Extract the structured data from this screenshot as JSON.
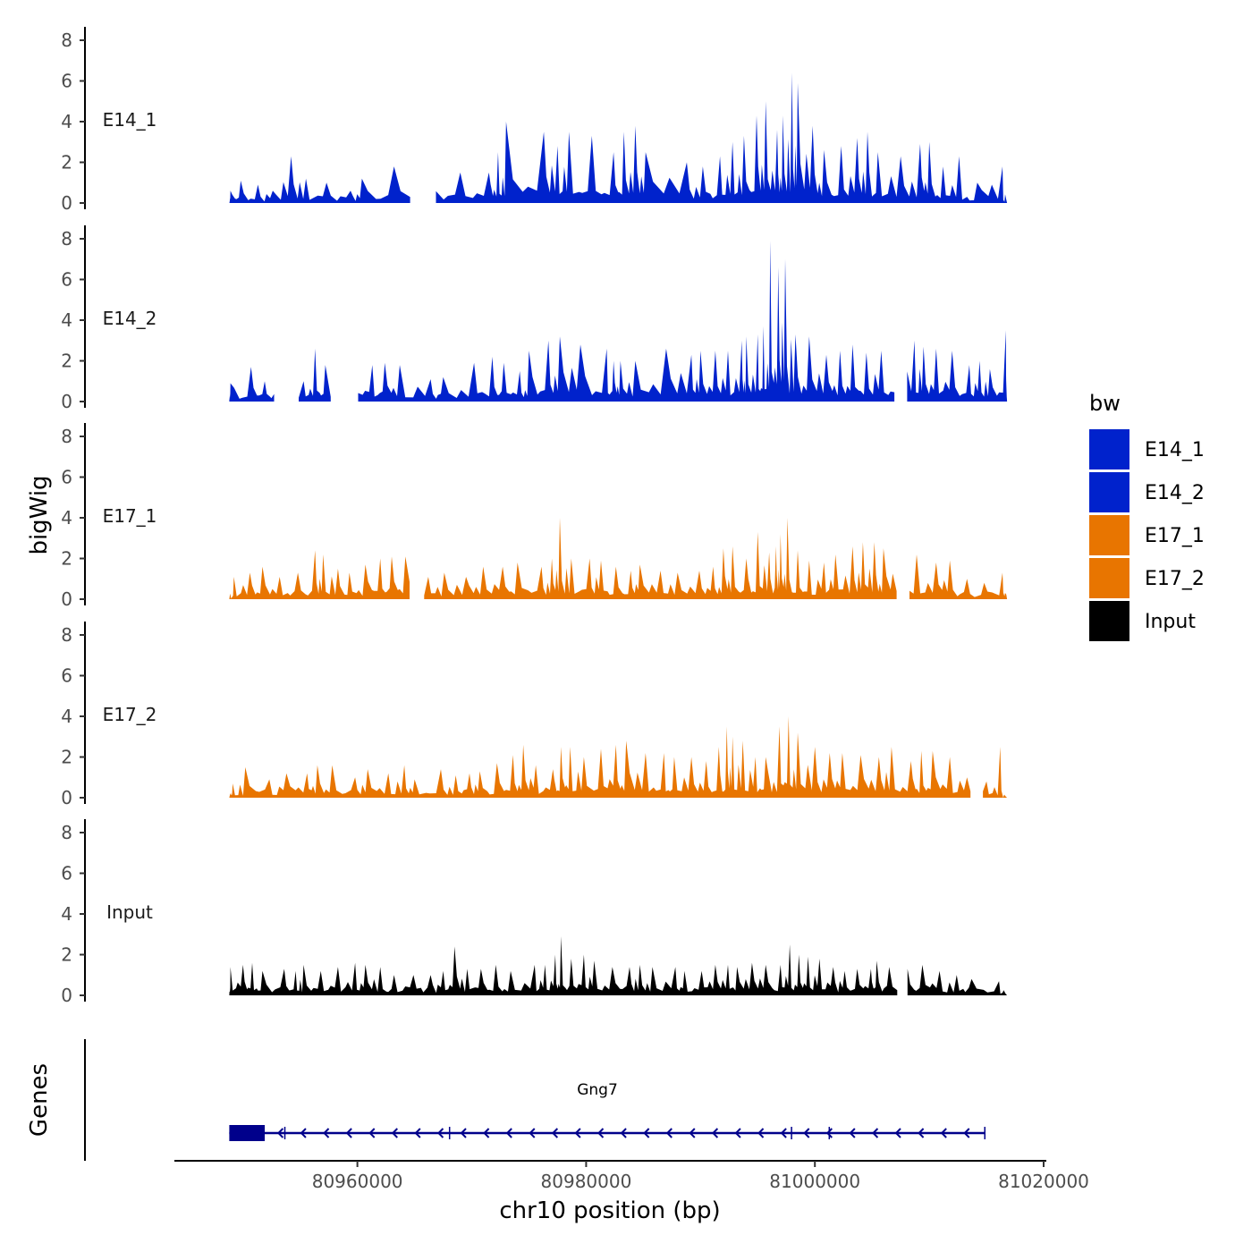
{
  "chart_data": {
    "type": "area",
    "title": "",
    "xlabel": "chr10 position (bp)",
    "ylabel": "bigWig",
    "genes_label": "Genes",
    "xlim": [
      80944000,
      81020000
    ],
    "ylim": [
      0,
      8
    ],
    "data_range": [
      80948800,
      81016800
    ],
    "x_ticks": [
      80960000,
      80980000,
      81000000,
      81020000
    ],
    "x_tick_labels": [
      "80960000",
      "80980000",
      "81000000",
      "81020000"
    ],
    "y_ticks": [
      0,
      2,
      4,
      6,
      8
    ],
    "y_tick_labels": [
      "0",
      "2",
      "4",
      "6",
      "8"
    ],
    "legend": {
      "title": "bw",
      "position": "right",
      "entries": [
        {
          "label": "E14_1",
          "color": "#0022CC"
        },
        {
          "label": "E14_2",
          "color": "#0022CC"
        },
        {
          "label": "E17_1",
          "color": "#E87500"
        },
        {
          "label": "E17_2",
          "color": "#E87500"
        },
        {
          "label": "Input",
          "color": "#000000"
        }
      ]
    },
    "series": [
      {
        "name": "E14_1",
        "color": "#0022CC",
        "peaks": [
          [
            80948900,
            0.6
          ],
          [
            80949800,
            1.1
          ],
          [
            80951300,
            0.9
          ],
          [
            80952600,
            0.6
          ],
          [
            80954200,
            2.3
          ],
          [
            80955500,
            1.2
          ],
          [
            80957300,
            1.0
          ],
          [
            80959400,
            0.6
          ],
          [
            80960400,
            1.2
          ],
          [
            80963200,
            1.8
          ],
          [
            80966400,
            1.0
          ],
          [
            80969000,
            1.5
          ],
          [
            80971500,
            1.5
          ],
          [
            80972300,
            2.5
          ],
          [
            80973000,
            4.0
          ],
          [
            80976300,
            3.5
          ],
          [
            80977500,
            2.8
          ],
          [
            80978500,
            3.5
          ],
          [
            80980500,
            3.3
          ],
          [
            80982400,
            2.5
          ],
          [
            80983300,
            3.5
          ],
          [
            80984300,
            3.8
          ],
          [
            80985200,
            2.5
          ],
          [
            80988800,
            2.0
          ],
          [
            80990200,
            1.8
          ],
          [
            80991700,
            2.3
          ],
          [
            80992800,
            3.0
          ],
          [
            80993800,
            3.3
          ],
          [
            80994900,
            4.3
          ],
          [
            80995700,
            5.0
          ],
          [
            80996700,
            3.6
          ],
          [
            80997200,
            4.3
          ],
          [
            80998000,
            6.4
          ],
          [
            80998500,
            5.9
          ],
          [
            80999800,
            3.8
          ],
          [
            81000800,
            2.6
          ],
          [
            81002300,
            2.8
          ],
          [
            81003700,
            3.2
          ],
          [
            81004600,
            3.5
          ],
          [
            81005500,
            2.5
          ],
          [
            81007500,
            2.3
          ],
          [
            81009200,
            2.9
          ],
          [
            81010000,
            3.0
          ],
          [
            81011200,
            1.8
          ],
          [
            81012600,
            2.3
          ],
          [
            81014200,
            1.0
          ],
          [
            81016400,
            1.8
          ]
        ],
        "gaps": [
          [
            80963800,
            80964500
          ],
          [
            80964900,
            80966400
          ]
        ]
      },
      {
        "name": "E14_2",
        "color": "#0022CC",
        "peaks": [
          [
            80948900,
            0.9
          ],
          [
            80950700,
            1.7
          ],
          [
            80951900,
            1.0
          ],
          [
            80952900,
            0.6
          ],
          [
            80955300,
            1.0
          ],
          [
            80956300,
            2.6
          ],
          [
            80957200,
            1.8
          ],
          [
            80959800,
            1.8
          ],
          [
            80961300,
            1.8
          ],
          [
            80962400,
            1.9
          ],
          [
            80963700,
            1.8
          ],
          [
            80966400,
            1.1
          ],
          [
            80967500,
            1.2
          ],
          [
            80970200,
            1.9
          ],
          [
            80971800,
            2.2
          ],
          [
            80972800,
            1.9
          ],
          [
            80974200,
            1.5
          ],
          [
            80975000,
            2.5
          ],
          [
            80976700,
            3.0
          ],
          [
            80977700,
            3.2
          ],
          [
            80979500,
            2.8
          ],
          [
            80981800,
            2.6
          ],
          [
            80982400,
            2.0
          ],
          [
            80983000,
            2.0
          ],
          [
            80984300,
            2.0
          ],
          [
            80987000,
            2.6
          ],
          [
            80989200,
            2.3
          ],
          [
            80990000,
            2.5
          ],
          [
            80991300,
            2.5
          ],
          [
            80992400,
            2.5
          ],
          [
            80993600,
            3.0
          ],
          [
            80994000,
            3.2
          ],
          [
            80995000,
            3.3
          ],
          [
            80995500,
            3.7
          ],
          [
            80996100,
            7.9
          ],
          [
            80996800,
            6.6
          ],
          [
            80997400,
            7.0
          ],
          [
            80998300,
            3.3
          ],
          [
            80999500,
            3.2
          ],
          [
            81001000,
            2.3
          ],
          [
            81002200,
            2.5
          ],
          [
            81003300,
            2.8
          ],
          [
            81004500,
            2.4
          ],
          [
            81005800,
            2.5
          ],
          [
            81007200,
            2.2
          ],
          [
            81008700,
            3.0
          ],
          [
            81009500,
            2.7
          ],
          [
            81010600,
            2.6
          ],
          [
            81012000,
            2.5
          ],
          [
            81013500,
            1.8
          ],
          [
            81014400,
            2.0
          ],
          [
            81015300,
            1.6
          ],
          [
            81016700,
            3.5
          ]
        ],
        "gaps": [
          [
            80952800,
            80953800
          ],
          [
            80954100,
            80954700
          ],
          [
            80958200,
            80959900
          ],
          [
            81007200,
            81008000
          ]
        ]
      },
      {
        "name": "E17_1",
        "color": "#E87500",
        "peaks": [
          [
            80949200,
            1.1
          ],
          [
            80950600,
            1.3
          ],
          [
            80951700,
            1.6
          ],
          [
            80953200,
            1.1
          ],
          [
            80954800,
            1.3
          ],
          [
            80956300,
            2.4
          ],
          [
            80957000,
            2.2
          ],
          [
            80958300,
            1.5
          ],
          [
            80959300,
            1.3
          ],
          [
            80960700,
            1.7
          ],
          [
            80962000,
            2.0
          ],
          [
            80963000,
            2.1
          ],
          [
            80964200,
            2.1
          ],
          [
            80966200,
            1.1
          ],
          [
            80967600,
            1.3
          ],
          [
            80969500,
            1.1
          ],
          [
            80971000,
            1.6
          ],
          [
            80972700,
            1.6
          ],
          [
            80974000,
            1.8
          ],
          [
            80976100,
            1.6
          ],
          [
            80977000,
            2.0
          ],
          [
            80977700,
            4.0
          ],
          [
            80978700,
            2.0
          ],
          [
            80980300,
            2.0
          ],
          [
            80981300,
            1.9
          ],
          [
            80982600,
            1.6
          ],
          [
            80983900,
            1.4
          ],
          [
            80984700,
            1.7
          ],
          [
            80986500,
            1.4
          ],
          [
            80988000,
            1.3
          ],
          [
            80989900,
            1.4
          ],
          [
            80991100,
            1.6
          ],
          [
            80992000,
            2.5
          ],
          [
            80992800,
            2.6
          ],
          [
            80994000,
            2.0
          ],
          [
            80995000,
            3.3
          ],
          [
            80996000,
            2.3
          ],
          [
            80996600,
            2.6
          ],
          [
            80997000,
            3.2
          ],
          [
            80997600,
            4.0
          ],
          [
            80998500,
            2.4
          ],
          [
            80999500,
            1.9
          ],
          [
            81000800,
            1.8
          ],
          [
            81001800,
            2.2
          ],
          [
            81003300,
            2.6
          ],
          [
            81004200,
            2.8
          ],
          [
            81005200,
            2.8
          ],
          [
            81006000,
            2.5
          ],
          [
            81007400,
            2.1
          ],
          [
            81008900,
            2.2
          ],
          [
            81010600,
            1.8
          ],
          [
            81011800,
            1.9
          ],
          [
            81013300,
            1.0
          ],
          [
            81014800,
            0.8
          ],
          [
            81016400,
            1.3
          ]
        ],
        "gaps": [
          [
            80964900,
            80965500
          ],
          [
            81007300,
            81008200
          ]
        ]
      },
      {
        "name": "E17_2",
        "color": "#E87500",
        "peaks": [
          [
            80949100,
            0.7
          ],
          [
            80950200,
            1.5
          ],
          [
            80952300,
            0.9
          ],
          [
            80953800,
            1.2
          ],
          [
            80955600,
            1.2
          ],
          [
            80956500,
            1.6
          ],
          [
            80957800,
            1.6
          ],
          [
            80959800,
            1.0
          ],
          [
            80960900,
            1.4
          ],
          [
            80962700,
            1.2
          ],
          [
            80964100,
            1.6
          ],
          [
            80965000,
            0.9
          ],
          [
            80967300,
            1.4
          ],
          [
            80968600,
            1.1
          ],
          [
            80969800,
            1.2
          ],
          [
            80970700,
            1.3
          ],
          [
            80972200,
            1.7
          ],
          [
            80973600,
            2.1
          ],
          [
            80974500,
            2.6
          ],
          [
            80975600,
            1.6
          ],
          [
            80977100,
            1.4
          ],
          [
            80977800,
            2.5
          ],
          [
            80978600,
            2.5
          ],
          [
            80979800,
            2.0
          ],
          [
            80981300,
            2.4
          ],
          [
            80982600,
            2.6
          ],
          [
            80983500,
            2.8
          ],
          [
            80985200,
            2.2
          ],
          [
            80986800,
            2.2
          ],
          [
            80987700,
            2.0
          ],
          [
            80989200,
            2.0
          ],
          [
            80990500,
            1.8
          ],
          [
            80991600,
            2.5
          ],
          [
            80992300,
            3.5
          ],
          [
            80992800,
            3.0
          ],
          [
            80993700,
            2.8
          ],
          [
            80994800,
            2.0
          ],
          [
            80995700,
            2.0
          ],
          [
            80996900,
            3.5
          ],
          [
            80997700,
            4.0
          ],
          [
            80998500,
            3.2
          ],
          [
            81000000,
            2.5
          ],
          [
            81001300,
            2.2
          ],
          [
            81002400,
            2.2
          ],
          [
            81004000,
            2.1
          ],
          [
            81005600,
            2.0
          ],
          [
            81006700,
            2.5
          ],
          [
            81008400,
            1.8
          ],
          [
            81009300,
            2.3
          ],
          [
            81010300,
            2.3
          ],
          [
            81011800,
            2.0
          ],
          [
            81013300,
            1.0
          ],
          [
            81015000,
            0.8
          ],
          [
            81016200,
            2.5
          ]
        ],
        "gaps": [
          [
            81013900,
            81014300
          ]
        ]
      },
      {
        "name": "Input",
        "color": "#000000",
        "peaks": [
          [
            80948900,
            1.4
          ],
          [
            80950000,
            1.5
          ],
          [
            80950800,
            1.6
          ],
          [
            80951700,
            1.2
          ],
          [
            80953600,
            1.3
          ],
          [
            80954600,
            1.2
          ],
          [
            80955300,
            1.5
          ],
          [
            80956800,
            1.2
          ],
          [
            80958300,
            1.4
          ],
          [
            80959800,
            1.6
          ],
          [
            80960700,
            1.5
          ],
          [
            80962000,
            1.4
          ],
          [
            80963200,
            1.0
          ],
          [
            80964900,
            1.0
          ],
          [
            80966400,
            1.0
          ],
          [
            80967500,
            1.2
          ],
          [
            80968500,
            2.4
          ],
          [
            80969600,
            1.3
          ],
          [
            80970800,
            1.3
          ],
          [
            80972100,
            1.5
          ],
          [
            80973400,
            1.2
          ],
          [
            80975500,
            1.5
          ],
          [
            80976400,
            1.5
          ],
          [
            80977300,
            2.0
          ],
          [
            80977800,
            2.9
          ],
          [
            80978700,
            1.8
          ],
          [
            80979800,
            2.0
          ],
          [
            80980700,
            1.7
          ],
          [
            80982300,
            1.4
          ],
          [
            80983800,
            1.4
          ],
          [
            80984700,
            1.5
          ],
          [
            80985800,
            1.4
          ],
          [
            80987800,
            1.4
          ],
          [
            80988600,
            1.2
          ],
          [
            80990100,
            1.2
          ],
          [
            80991300,
            1.5
          ],
          [
            80992400,
            1.5
          ],
          [
            80993200,
            1.4
          ],
          [
            80994500,
            1.6
          ],
          [
            80995700,
            1.5
          ],
          [
            80997000,
            1.5
          ],
          [
            80997800,
            2.5
          ],
          [
            80998600,
            2.0
          ],
          [
            80999400,
            1.9
          ],
          [
            81000400,
            1.8
          ],
          [
            81001600,
            1.4
          ],
          [
            81002600,
            1.2
          ],
          [
            81003700,
            1.3
          ],
          [
            81004900,
            1.3
          ],
          [
            81005400,
            1.7
          ],
          [
            81006500,
            1.4
          ],
          [
            81008100,
            1.3
          ],
          [
            81009400,
            1.5
          ],
          [
            81010900,
            1.2
          ],
          [
            81012400,
            1.0
          ],
          [
            81013700,
            0.8
          ],
          [
            81016100,
            0.7
          ]
        ],
        "gaps": [
          [
            81007400,
            81007900
          ]
        ]
      }
    ],
    "gene": {
      "name": "Gng7",
      "color": "#00008B",
      "strand": "-",
      "start": 80948800,
      "end": 81014900,
      "exons": [
        [
          80948800,
          80951900
        ],
        [
          80953600,
          80953700
        ],
        [
          80968000,
          80968100
        ],
        [
          80997900,
          80998000
        ],
        [
          81001200,
          81001300
        ],
        [
          81014800,
          81014900
        ]
      ]
    }
  }
}
